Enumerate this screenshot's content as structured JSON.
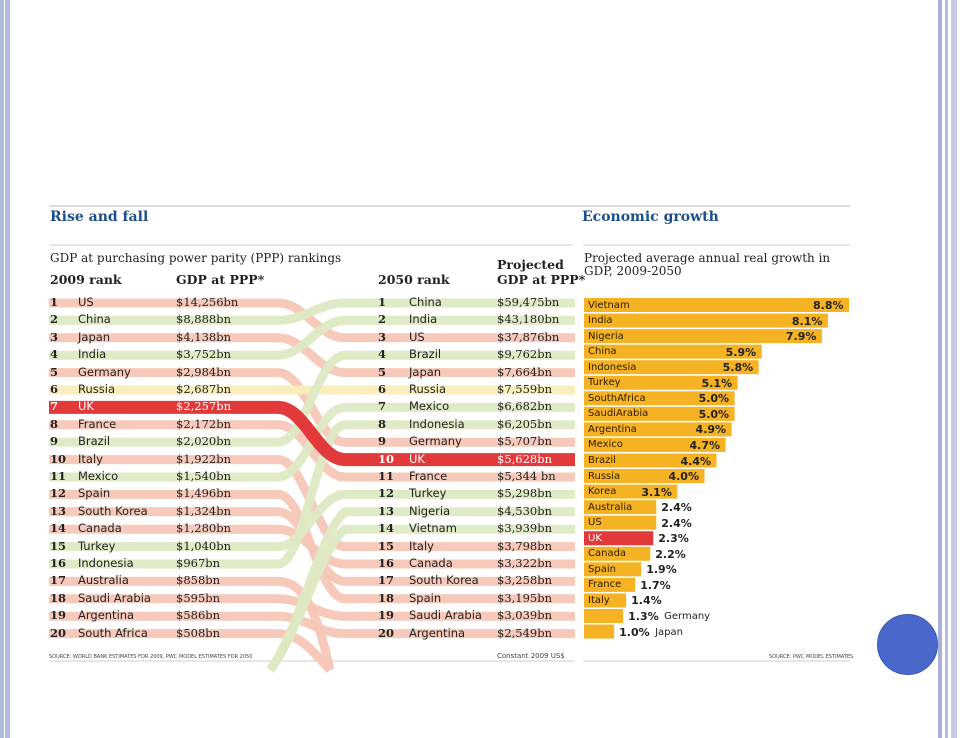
{
  "left_title": "Rise and fall",
  "left_subtitle": "GDP at purchasing power parity (PPP) rankings",
  "right_title": "Economic growth",
  "right_subtitle_line1": "Projected average annual real growth in",
  "right_subtitle_line2": "GDP, 2009-2050",
  "col_2009_rank": "2009 rank",
  "col_2009_gdp": "GDP at PPP*",
  "col_2050_rank": "2050 rank",
  "col_2050_gdp_line1": "Projected",
  "col_2050_gdp_line2": "GDP at PPP*",
  "source_left": "SOURCE: WORLD BANK ESTIMATES FOR 2009, PWC MODEL ESTIMATES FOR 2050",
  "constant_note": "Constant 2009 US$",
  "source_right": "SOURCE: PWC MODEL ESTIMATES",
  "colors": {
    "title": "#1d4f8b",
    "uk_red": "#e23a3a",
    "rise_green": "#dde9c4",
    "fall_red": "#f5c6b6",
    "same_yellow": "#faeeb8",
    "growth_orange": "#f5b324"
  },
  "chart_data": [
    {
      "type": "table",
      "title": "Rise and fall",
      "subtitle": "GDP at purchasing power parity (PPP) rankings",
      "rank_2009": [
        {
          "rank": "1",
          "country": "US",
          "gdp": "$14,256bn"
        },
        {
          "rank": "2",
          "country": "China",
          "gdp": "$8,888bn"
        },
        {
          "rank": "3",
          "country": "Japan",
          "gdp": "$4,138bn"
        },
        {
          "rank": "4",
          "country": "India",
          "gdp": "$3,752bn"
        },
        {
          "rank": "5",
          "country": "Germany",
          "gdp": "$2,984bn"
        },
        {
          "rank": "6",
          "country": "Russia",
          "gdp": "$2,687bn"
        },
        {
          "rank": "7",
          "country": "UK",
          "gdp": "$2,257bn"
        },
        {
          "rank": "8",
          "country": "France",
          "gdp": "$2,172bn"
        },
        {
          "rank": "9",
          "country": "Brazil",
          "gdp": "$2,020bn"
        },
        {
          "rank": "10",
          "country": "Italy",
          "gdp": "$1,922bn"
        },
        {
          "rank": "11",
          "country": "Mexico",
          "gdp": "$1,540bn"
        },
        {
          "rank": "12",
          "country": "Spain",
          "gdp": "$1,496bn"
        },
        {
          "rank": "13",
          "country": "South Korea",
          "gdp": "$1,324bn"
        },
        {
          "rank": "14",
          "country": "Canada",
          "gdp": "$1,280bn"
        },
        {
          "rank": "15",
          "country": "Turkey",
          "gdp": "$1,040bn"
        },
        {
          "rank": "16",
          "country": "Indonesia",
          "gdp": "$967bn"
        },
        {
          "rank": "17",
          "country": "Australia",
          "gdp": "$858bn"
        },
        {
          "rank": "18",
          "country": "Saudi Arabia",
          "gdp": "$595bn"
        },
        {
          "rank": "19",
          "country": "Argentina",
          "gdp": "$586bn"
        },
        {
          "rank": "20",
          "country": "South Africa",
          "gdp": "$508bn"
        }
      ],
      "rank_2050": [
        {
          "rank": "1",
          "country": "China",
          "gdp": "$59,475bn"
        },
        {
          "rank": "2",
          "country": "India",
          "gdp": "$43,180bn"
        },
        {
          "rank": "3",
          "country": "US",
          "gdp": "$37,876bn"
        },
        {
          "rank": "4",
          "country": "Brazil",
          "gdp": "$9,762bn"
        },
        {
          "rank": "5",
          "country": "Japan",
          "gdp": "$7,664bn"
        },
        {
          "rank": "6",
          "country": "Russia",
          "gdp": "$7,559bn"
        },
        {
          "rank": "7",
          "country": "Mexico",
          "gdp": "$6,682bn"
        },
        {
          "rank": "8",
          "country": "Indonesia",
          "gdp": "$6,205bn"
        },
        {
          "rank": "9",
          "country": "Germany",
          "gdp": "$5,707bn"
        },
        {
          "rank": "10",
          "country": "UK",
          "gdp": "$5,628bn"
        },
        {
          "rank": "11",
          "country": "France",
          "gdp": "$5,344 bn"
        },
        {
          "rank": "12",
          "country": "Turkey",
          "gdp": "$5,298bn"
        },
        {
          "rank": "13",
          "country": "Nigeria",
          "gdp": "$4,530bn"
        },
        {
          "rank": "14",
          "country": "Vietnam",
          "gdp": "$3,939bn"
        },
        {
          "rank": "15",
          "country": "Italy",
          "gdp": "$3,798bn"
        },
        {
          "rank": "16",
          "country": "Canada",
          "gdp": "$3,322bn"
        },
        {
          "rank": "17",
          "country": "South Korea",
          "gdp": "$3,258bn"
        },
        {
          "rank": "18",
          "country": "Spain",
          "gdp": "$3,195bn"
        },
        {
          "rank": "19",
          "country": "Saudi Arabia",
          "gdp": "$3,039bn"
        },
        {
          "rank": "20",
          "country": "Argentina",
          "gdp": "$2,549bn"
        }
      ]
    },
    {
      "type": "bar",
      "orientation": "horizontal",
      "title": "Economic growth",
      "subtitle": "Projected average annual real growth in GDP, 2009-2050",
      "unit": "%",
      "categories": [
        "Vietnam",
        "India",
        "Nigeria",
        "China",
        "Indonesia",
        "Turkey",
        "SouthAfrica",
        "SaudiArabia",
        "Argentina",
        "Mexico",
        "Brazil",
        "Russia",
        "Korea",
        "Australia",
        "US",
        "UK",
        "Canada",
        "Spain",
        "France",
        "Italy",
        "Germany",
        "Japan"
      ],
      "values": [
        8.8,
        8.1,
        7.9,
        5.9,
        5.8,
        5.1,
        5.0,
        5.0,
        4.9,
        4.7,
        4.4,
        4.0,
        3.1,
        2.4,
        2.4,
        2.3,
        2.2,
        1.9,
        1.7,
        1.4,
        1.3,
        1.0
      ],
      "value_labels": [
        "8.8%",
        "8.1%",
        "7.9%",
        "5.9%",
        "5.8%",
        "5.1%",
        "5.0%",
        "5.0%",
        "4.9%",
        "4.7%",
        "4.4%",
        "4.0%",
        "3.1%",
        "2.4%",
        "2.4%",
        "2.3%",
        "2.2%",
        "1.9%",
        "1.7%",
        "1.4%",
        "1.3%",
        "1.0%"
      ],
      "highlight": "UK"
    }
  ]
}
